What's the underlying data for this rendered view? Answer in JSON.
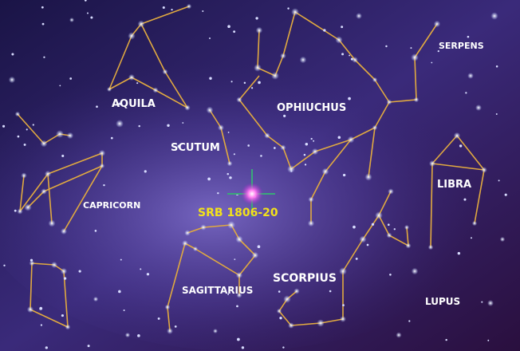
{
  "constellations": [
    {
      "name": "AQUILA"
    },
    {
      "name": "SCUTUM"
    },
    {
      "name": "OPHIUCHUS"
    },
    {
      "name": "SERPENS"
    },
    {
      "name": "CAPRICORN"
    },
    {
      "name": "LIBRA"
    },
    {
      "name": "SAGITTARIUS"
    },
    {
      "name": "SCORPIUS"
    },
    {
      "name": "LUPUS"
    }
  ],
  "target": {
    "name": "SRB 1806-20"
  }
}
